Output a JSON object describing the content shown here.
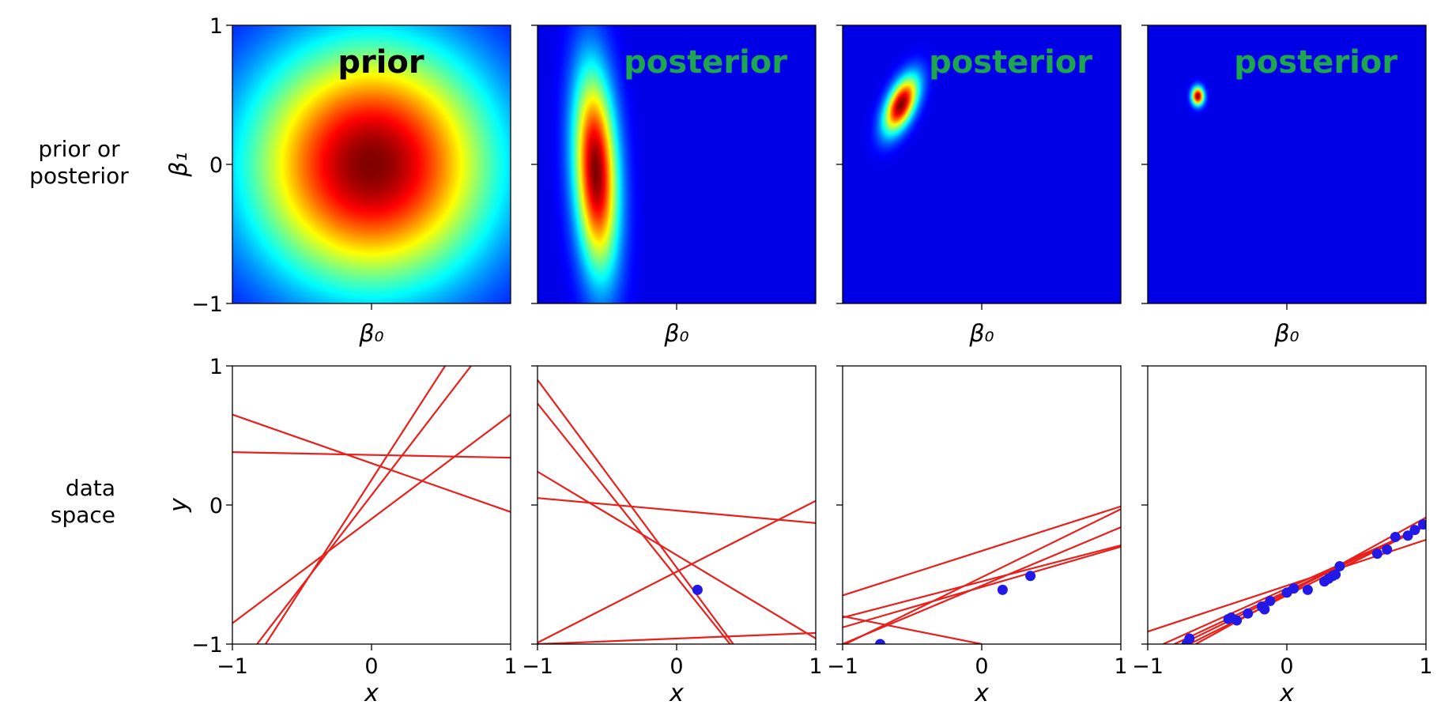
{
  "figure": {
    "row_labels": {
      "top": [
        "prior or",
        "posterior"
      ],
      "bottom": [
        "data",
        "space"
      ]
    },
    "colormap": "jet",
    "background_color": "#ffffff",
    "line_color": "#e8201c",
    "point_color": "#2319e6",
    "label_colors": {
      "prior": "#000000",
      "posterior": "#1ea550"
    }
  },
  "chart_data": [
    {
      "type": "heatmap",
      "row": "top",
      "panel_label": "prior",
      "xlabel": "β₀",
      "ylabel": "β₁",
      "xlim": [
        -1,
        1
      ],
      "ylim": [
        -1,
        1
      ],
      "xticks": [],
      "xtick_labels": [],
      "yticks": [
        -1,
        0,
        1
      ],
      "ytick_labels": [
        "−1",
        "0",
        "1"
      ],
      "density": {
        "mean": [
          0.0,
          0.0
        ],
        "sd": [
          0.62,
          0.62
        ],
        "corr": 0.0
      }
    },
    {
      "type": "heatmap",
      "row": "top",
      "panel_label": "posterior",
      "xlabel": "β₀",
      "ylabel": "",
      "xlim": [
        -1,
        1
      ],
      "ylim": [
        -1,
        1
      ],
      "xticks": [],
      "xtick_labels": [],
      "yticks": [],
      "ytick_labels": [],
      "density": {
        "mean": [
          -0.58,
          -0.05
        ],
        "sd": [
          0.11,
          0.5
        ],
        "corr": -0.2
      }
    },
    {
      "type": "heatmap",
      "row": "top",
      "panel_label": "posterior",
      "xlabel": "β₀",
      "ylabel": "",
      "xlim": [
        -1,
        1
      ],
      "ylim": [
        -1,
        1
      ],
      "xticks": [],
      "xtick_labels": [],
      "yticks": [],
      "ytick_labels": [],
      "density": {
        "mean": [
          -0.58,
          0.43
        ],
        "sd": [
          0.085,
          0.14
        ],
        "corr": 0.55
      }
    },
    {
      "type": "heatmap",
      "row": "top",
      "panel_label": "posterior",
      "xlabel": "β₀",
      "ylabel": "",
      "xlim": [
        -1,
        1
      ],
      "ylim": [
        -1,
        1
      ],
      "xticks": [],
      "xtick_labels": [],
      "yticks": [],
      "ytick_labels": [],
      "density": {
        "mean": [
          -0.64,
          0.49
        ],
        "sd": [
          0.03,
          0.045
        ],
        "corr": 0.0
      }
    },
    {
      "type": "line",
      "row": "bottom",
      "xlabel": "x",
      "ylabel": "y",
      "xlim": [
        -1,
        1
      ],
      "ylim": [
        -1,
        1
      ],
      "xticks": [
        -1,
        0,
        1
      ],
      "xtick_labels": [
        "−1",
        "0",
        "1"
      ],
      "yticks": [
        -1,
        0,
        1
      ],
      "ytick_labels": [
        "−1",
        "0",
        "1"
      ],
      "lines": [
        {
          "intercept": 0.3,
          "slope": -0.35
        },
        {
          "intercept": 0.36,
          "slope": -0.02
        },
        {
          "intercept": -0.1,
          "slope": 0.75
        },
        {
          "intercept": 0.18,
          "slope": 1.55
        },
        {
          "intercept": 0.07,
          "slope": 1.3
        }
      ],
      "points": {
        "x": [],
        "y": []
      }
    },
    {
      "type": "line",
      "row": "bottom",
      "xlabel": "x",
      "ylabel": "",
      "xlim": [
        -1,
        1
      ],
      "ylim": [
        -1,
        1
      ],
      "xticks": [
        -1,
        0,
        1
      ],
      "xtick_labels": [
        "−1",
        "0",
        "1"
      ],
      "yticks": [],
      "ytick_labels": [],
      "lines": [
        {
          "intercept": -0.45,
          "slope": -1.35
        },
        {
          "intercept": -0.52,
          "slope": -1.25
        },
        {
          "intercept": -0.36,
          "slope": -0.6
        },
        {
          "intercept": -0.04,
          "slope": -0.09
        },
        {
          "intercept": -0.48,
          "slope": 0.51
        },
        {
          "intercept": -0.96,
          "slope": 0.04
        }
      ],
      "points": {
        "x": [
          0.15
        ],
        "y": [
          -0.61
        ]
      }
    },
    {
      "type": "line",
      "row": "bottom",
      "xlabel": "x",
      "ylabel": "",
      "xlim": [
        -1,
        1
      ],
      "ylim": [
        -1,
        1
      ],
      "xticks": [
        -1,
        0,
        1
      ],
      "xtick_labels": [
        "−1",
        "0",
        "1"
      ],
      "yticks": [],
      "ytick_labels": [],
      "lines": [
        {
          "intercept": -0.33,
          "slope": 0.32
        },
        {
          "intercept": -0.58,
          "slope": 0.42
        },
        {
          "intercept": -0.55,
          "slope": 0.26
        },
        {
          "intercept": -0.59,
          "slope": 0.29
        },
        {
          "intercept": -0.52,
          "slope": 0.49
        },
        {
          "intercept": -1.0,
          "slope": -0.2
        }
      ],
      "points": {
        "x": [
          -0.73,
          0.15,
          0.35
        ],
        "y": [
          -1.0,
          -0.61,
          -0.51
        ]
      }
    },
    {
      "type": "line",
      "row": "bottom",
      "xlabel": "x",
      "ylabel": "",
      "xlim": [
        -1,
        1
      ],
      "ylim": [
        -1,
        1
      ],
      "xticks": [
        -1,
        0,
        1
      ],
      "xtick_labels": [
        "−1",
        "0",
        "1"
      ],
      "yticks": [],
      "ytick_labels": [],
      "lines": [
        {
          "intercept": -0.58,
          "slope": 0.33
        },
        {
          "intercept": -0.6,
          "slope": 0.45
        },
        {
          "intercept": -0.62,
          "slope": 0.47
        },
        {
          "intercept": -0.63,
          "slope": 0.49
        },
        {
          "intercept": -0.65,
          "slope": 0.5
        },
        {
          "intercept": -0.64,
          "slope": 0.55
        }
      ],
      "points": {
        "x": [
          -0.72,
          -0.7,
          -0.42,
          -0.4,
          -0.36,
          -0.28,
          -0.18,
          -0.16,
          -0.12,
          0.0,
          0.05,
          0.15,
          0.27,
          0.3,
          0.33,
          0.35,
          0.38,
          0.65,
          0.72,
          0.78,
          0.87,
          0.92,
          0.98
        ],
        "y": [
          -1.0,
          -0.96,
          -0.82,
          -0.81,
          -0.83,
          -0.78,
          -0.73,
          -0.75,
          -0.69,
          -0.63,
          -0.6,
          -0.61,
          -0.55,
          -0.53,
          -0.51,
          -0.5,
          -0.44,
          -0.35,
          -0.32,
          -0.23,
          -0.22,
          -0.18,
          -0.14
        ]
      }
    }
  ]
}
